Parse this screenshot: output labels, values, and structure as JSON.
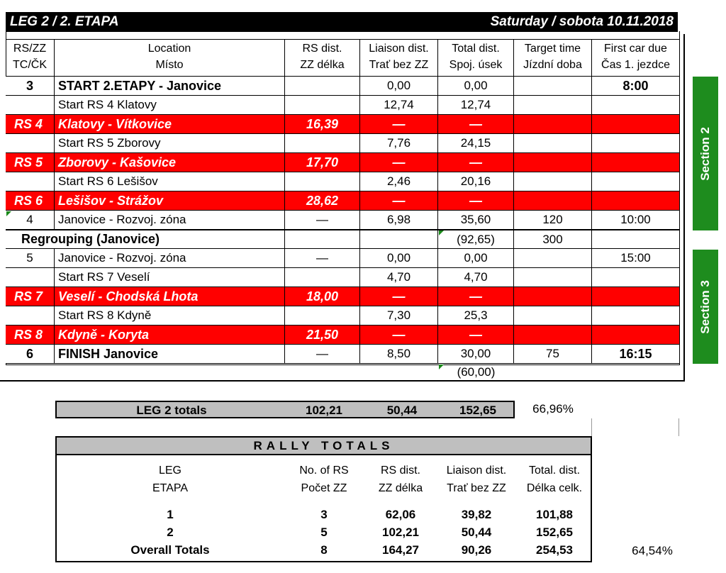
{
  "title": "LEG 2 / 2. ETAPA",
  "date": "Saturday / sobota 10.11.2018",
  "table": {
    "header": [
      [
        "RS/ZZ",
        "TC/ČK"
      ],
      [
        "Location",
        "Místo"
      ],
      [
        "RS dist.",
        "ZZ délka"
      ],
      [
        "Liaison dist.",
        "Trať bez ZZ"
      ],
      [
        "Total dist.",
        "Spoj. úsek"
      ],
      [
        "Target time",
        "Jízdní doba"
      ],
      [
        "First car due",
        "Čas 1. jezdce"
      ]
    ],
    "rows": [
      [
        "3",
        "START 2.ETAPY - Janovice",
        null,
        "0,00",
        "0,00",
        null,
        "8:00"
      ],
      [
        null,
        "Start RS 4 Klatovy",
        null,
        "12,74",
        "12,74",
        null,
        null
      ],
      [
        "RS 4",
        "Klatovy - Vítkovice",
        "16,39",
        "—",
        "—",
        null,
        null
      ],
      [
        null,
        "Start RS 5 Zborovy",
        null,
        "7,76",
        "24,15",
        null,
        null
      ],
      [
        "RS 5",
        "Zborovy - Kašovice",
        "17,70",
        "—",
        "—",
        null,
        null
      ],
      [
        null,
        "Start RS 6 Lešišov",
        null,
        "2,46",
        "20,16",
        null,
        null
      ],
      [
        "RS 6",
        "Lešišov - Strážov",
        "28,62",
        "—",
        "—",
        null,
        null
      ],
      [
        "4",
        "Janovice - Rozvoj. zóna",
        "—",
        "6,98",
        "35,60",
        "120",
        "10:00"
      ],
      [
        "Regrouping (Janovice)",
        null,
        null,
        null,
        "(92,65)",
        "300",
        null
      ],
      [
        "5",
        "Janovice - Rozvoj. zóna",
        "—",
        "0,00",
        "0,00",
        null,
        "15:00"
      ],
      [
        null,
        "Start RS 7 Veselí",
        null,
        "4,70",
        "4,70",
        null,
        null
      ],
      [
        "RS 7",
        "Veselí - Chodská Lhota",
        "18,00",
        "—",
        "—",
        null,
        null
      ],
      [
        null,
        "Start RS 8 Kdyně",
        null,
        "7,30",
        "25,3",
        null,
        null
      ],
      [
        "RS 8",
        "Kdyně - Koryta",
        "21,50",
        "—",
        "—",
        null,
        null
      ],
      [
        "6",
        "FINISH Janovice",
        "—",
        "8,50",
        "30,00",
        "75",
        "16:15"
      ]
    ],
    "subtotal": "(60,00)"
  },
  "sections": [
    "Section 2",
    "Section 3"
  ],
  "leg_totals": {
    "label": "LEG 2 totals",
    "values": [
      "102,21",
      "50,44",
      "152,65"
    ],
    "percent": "66,96%"
  },
  "rally_totals": {
    "title": "RALLY TOTALS",
    "columns": [
      [
        "LEG",
        "ETAPA"
      ],
      [
        "No. of RS",
        "Počet ZZ"
      ],
      [
        "RS dist.",
        "ZZ délka"
      ],
      [
        "Liaison dist.",
        "Trať bez ZZ"
      ],
      [
        "Total. dist.",
        "Délka celk."
      ]
    ],
    "rows": [
      [
        "1",
        "3",
        "62,06",
        "39,82",
        "101,88"
      ],
      [
        "2",
        "5",
        "102,21",
        "50,44",
        "152,65"
      ],
      [
        "Overall Totals",
        "8",
        "164,27",
        "90,26",
        "254,53"
      ]
    ],
    "percent": "64,54%"
  }
}
